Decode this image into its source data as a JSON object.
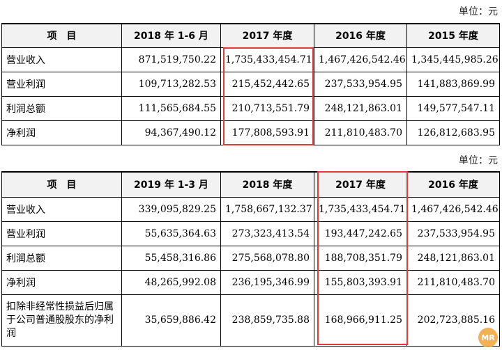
{
  "table1": {
    "unit": "单位：元",
    "headers": [
      "项　目",
      "2018 年 1-6 月",
      "2017 年度",
      "2016 年度",
      "2015 年度"
    ],
    "rows": [
      [
        "营业收入",
        "871,519,750.22",
        "1,735,433,454.71",
        "1,467,426,542.46",
        "1,345,445,985.26"
      ],
      [
        "营业利润",
        "109,713,282.53",
        "215,452,442.65",
        "237,533,954.95",
        "141,883,869.99"
      ],
      [
        "利润总额",
        "111,565,684.55",
        "210,713,551.79",
        "248,121,863.01",
        "149,577,547.11"
      ],
      [
        "净利润",
        "94,367,490.12",
        "177,808,593.91",
        "211,810,483.70",
        "126,812,683.95"
      ]
    ]
  },
  "table2": {
    "unit": "单位：元",
    "headers": [
      "项　目",
      "2019 年 1-3 月",
      "2018 年度",
      "2017 年度",
      "2016 年度"
    ],
    "rows": [
      [
        "营业收入",
        "339,095,829.25",
        "1,758,667,132.37",
        "1,735,433,454.71",
        "1,467,426,542.46"
      ],
      [
        "营业利润",
        "55,635,364.63",
        "273,323,413.54",
        "193,447,242.65",
        "237,533,954.95"
      ],
      [
        "利润总额",
        "55,458,316.86",
        "275,568,078.80",
        "188,708,351.79",
        "248,121,863.01"
      ],
      [
        "净利润",
        "48,265,992.08",
        "236,195,346.99",
        "155,803,393.91",
        "211,810,483.70"
      ],
      [
        "扣除非经常性损益后归属于公司普通股股东的净利润",
        "35,659,886.42",
        "238,859,735.88",
        "168,966,911.25",
        "202,723,885.16"
      ]
    ]
  },
  "highlight_color": "#e53935",
  "watermark": "MR"
}
